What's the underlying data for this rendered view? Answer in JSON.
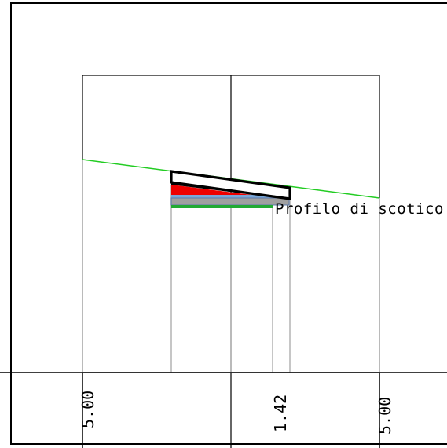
{
  "drawing": {
    "profile_label": "Profilo di scotico",
    "dimensions": [
      {
        "label": "5.00"
      },
      {
        "label": "1.42"
      },
      {
        "label": "5.00"
      }
    ]
  },
  "colors": {
    "terrain_line": "#22cc22",
    "stripping_layer": "#ee0000",
    "layer_blue": "#7aa7d8",
    "layer_grey": "#a0a0a0",
    "layer_green": "#22aa33",
    "frame": "#000000",
    "guide_lines": "#b4b4b4"
  }
}
